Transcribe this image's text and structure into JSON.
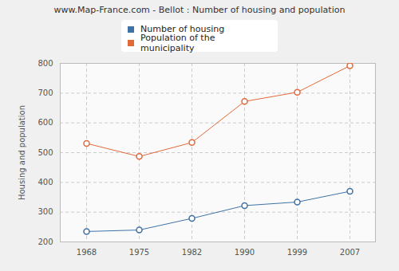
{
  "chart_data": {
    "type": "line",
    "title": "www.Map-France.com - Bellot : Number of housing and population",
    "y_label": "Housing and population",
    "categories": [
      "1968",
      "1975",
      "1982",
      "1990",
      "1999",
      "2007"
    ],
    "series": [
      {
        "name": "Number of housing",
        "color": "#3f72a6",
        "values": [
          235,
          240,
          279,
          322,
          334,
          370
        ]
      },
      {
        "name": "Population of the municipality",
        "color": "#e2693a",
        "values": [
          531,
          487,
          534,
          672,
          703,
          792
        ]
      }
    ],
    "ylim": [
      200,
      800
    ],
    "yticks": [
      200,
      300,
      400,
      500,
      600,
      700,
      800
    ],
    "grid": true,
    "legend": "top",
    "marker": "circle"
  }
}
